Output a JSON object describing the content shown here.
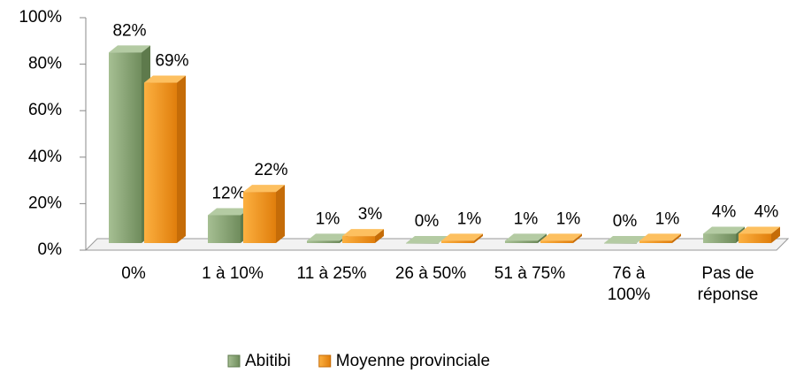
{
  "chart_data": {
    "type": "bar3d",
    "categories": [
      "0%",
      "1 à 10%",
      "11 à 25%",
      "26 à 50%",
      "51 à 75%",
      "76 à 100%",
      "Pas de réponse"
    ],
    "series": [
      {
        "name": "Abitibi",
        "color": "#8ba877",
        "values": [
          82,
          12,
          1,
          0,
          1,
          0,
          4
        ],
        "value_labels": [
          "82%",
          "12%",
          "1%",
          "0%",
          "1%",
          "0%",
          "4%"
        ]
      },
      {
        "name": "Moyenne provinciale",
        "color": "#f7931e",
        "values": [
          69,
          22,
          3,
          1,
          1,
          1,
          4
        ],
        "value_labels": [
          "69%",
          "22%",
          "3%",
          "1%",
          "1%",
          "1%",
          "4%"
        ]
      }
    ],
    "ylim": [
      0,
      100
    ],
    "yticks": [
      {
        "value": 0,
        "label": "0%"
      },
      {
        "value": 20,
        "label": "20%"
      },
      {
        "value": 40,
        "label": "40%"
      },
      {
        "value": 60,
        "label": "60%"
      },
      {
        "value": 80,
        "label": "80%"
      },
      {
        "value": 100,
        "label": "100%"
      }
    ],
    "legend": "bottom"
  }
}
